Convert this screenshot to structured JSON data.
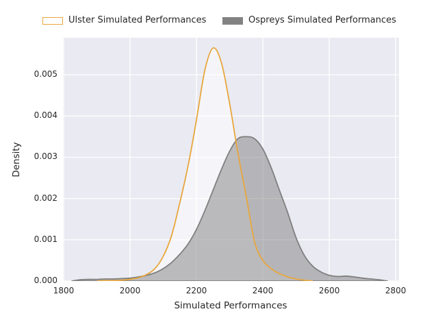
{
  "figure": {
    "background": "#ffffff",
    "axes_background": "#eaeaf2",
    "grid_color": "#ffffff",
    "text_color": "#262626"
  },
  "legend": {
    "position": "top",
    "items": [
      {
        "label": "Ulster Simulated Performances",
        "swatch_fill": "#ffffff",
        "swatch_border": "#e8a63c"
      },
      {
        "label": "Ospreys Simulated Performances",
        "swatch_fill": "#828282",
        "swatch_border": "#828282"
      }
    ]
  },
  "chart_data": {
    "type": "area",
    "subtype": "kde-density",
    "title": "",
    "xlabel": "Simulated Performances",
    "ylabel": "Density",
    "xlim": [
      1798,
      2810
    ],
    "ylim": [
      0,
      0.0059
    ],
    "x_ticks": [
      1800,
      2000,
      2200,
      2400,
      2600,
      2800
    ],
    "x_tick_labels": [
      "1800",
      "2000",
      "2200",
      "2400",
      "2600",
      "2800"
    ],
    "y_ticks": [
      0.0,
      0.001,
      0.002,
      0.003,
      0.004,
      0.005
    ],
    "y_tick_labels": [
      "0.000",
      "0.001",
      "0.002",
      "0.003",
      "0.004",
      "0.005"
    ],
    "grid": true,
    "legend_position": "upper center, above axes",
    "series": [
      {
        "name": "Ulster Simulated Performances",
        "color": "#e8a63c",
        "fill": "rgba(255,255,255,0.5)",
        "peak": {
          "x": 2250,
          "y": 0.00565
        },
        "x": [
          1900,
          1925,
          1950,
          1975,
          2000,
          2025,
          2050,
          2075,
          2100,
          2125,
          2150,
          2175,
          2200,
          2225,
          2250,
          2275,
          2300,
          2325,
          2350,
          2375,
          2400,
          2425,
          2450,
          2475,
          2500,
          2525,
          2550
        ],
        "y": [
          0,
          1e-05,
          1e-05,
          2e-05,
          4e-05,
          8e-05,
          0.00016,
          0.0003,
          0.0006,
          0.0011,
          0.0019,
          0.0028,
          0.0039,
          0.0051,
          0.00565,
          0.0053,
          0.0043,
          0.0031,
          0.00205,
          0.00095,
          0.0005,
          0.0003,
          0.00018,
          0.0001,
          5e-05,
          2e-05,
          0
        ]
      },
      {
        "name": "Ospreys Simulated Performances",
        "color": "#7f7f7f",
        "fill": "rgba(127,127,127,0.5)",
        "peak": {
          "x": 2350,
          "y": 0.0035
        },
        "x": [
          1825,
          1850,
          1875,
          1900,
          1925,
          1950,
          1975,
          2000,
          2025,
          2050,
          2075,
          2100,
          2125,
          2150,
          2175,
          2200,
          2225,
          2250,
          2275,
          2300,
          2325,
          2350,
          2375,
          2400,
          2425,
          2450,
          2475,
          2500,
          2525,
          2550,
          2575,
          2600,
          2625,
          2650,
          2675,
          2700,
          2725,
          2750,
          2775
        ],
        "y": [
          0,
          3e-05,
          4e-05,
          4e-05,
          5e-05,
          5e-05,
          6e-05,
          7e-05,
          0.0001,
          0.00014,
          0.0002,
          0.0003,
          0.00045,
          0.00065,
          0.0009,
          0.00125,
          0.0017,
          0.0022,
          0.0027,
          0.00315,
          0.00345,
          0.0035,
          0.00345,
          0.0032,
          0.00275,
          0.0022,
          0.00165,
          0.00105,
          0.00062,
          0.00036,
          0.00022,
          0.00014,
          0.00011,
          0.00012,
          0.0001,
          7e-05,
          5e-05,
          3e-05,
          0
        ]
      }
    ]
  }
}
